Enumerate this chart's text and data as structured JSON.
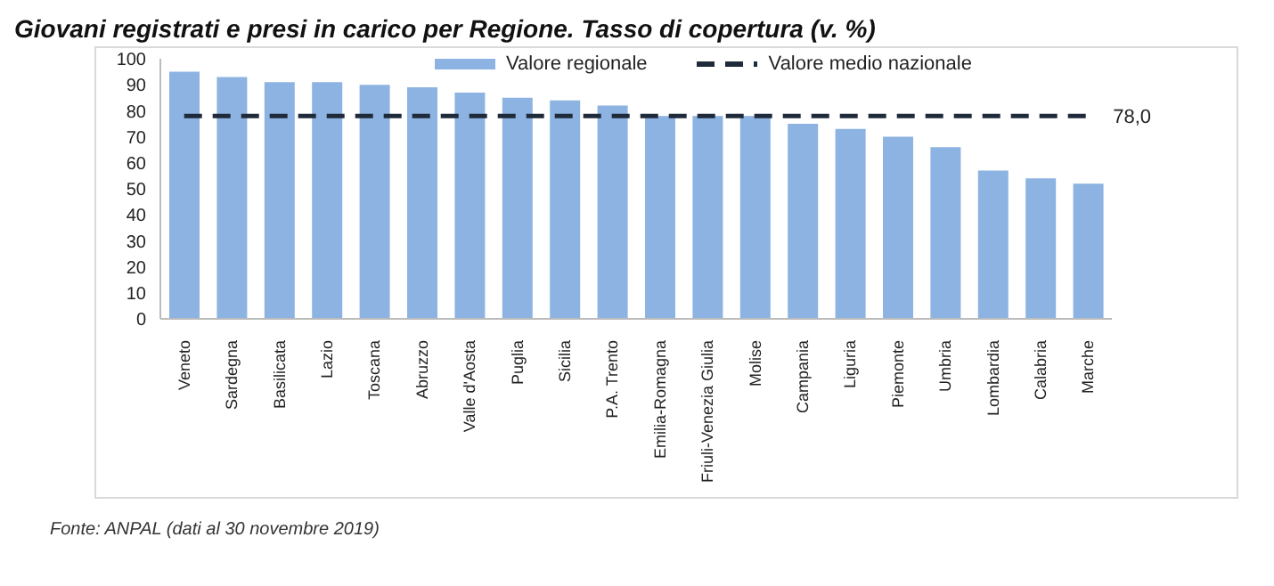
{
  "chart_data": {
    "type": "bar",
    "title": "Giovani registrati e presi in carico per Regione. Tasso di copertura (v. %)",
    "categories": [
      "Veneto",
      "Sardegna",
      "Basilicata",
      "Lazio",
      "Toscana",
      "Abruzzo",
      "Valle d'Aosta",
      "Puglia",
      "Sicilia",
      "P.A. Trento",
      "Emilia-Romagna",
      "Friuli-Venezia Giulia",
      "Molise",
      "Campania",
      "Liguria",
      "Piemonte",
      "Umbria",
      "Lombardia",
      "Calabria",
      "Marche"
    ],
    "series": [
      {
        "name": "Valore regionale",
        "color": "#8db3e2",
        "values": [
          95,
          93,
          91,
          91,
          90,
          89,
          87,
          85,
          84,
          82,
          78,
          78,
          78,
          75,
          73,
          70,
          66,
          57,
          54,
          52
        ]
      },
      {
        "name": "Valore medio nazionale",
        "type": "line",
        "color": "#1f2a3a",
        "values": [
          78,
          78,
          78,
          78,
          78,
          78,
          78,
          78,
          78,
          78,
          78,
          78,
          78,
          78,
          78,
          78,
          78,
          78,
          78,
          78
        ],
        "value_labels": [
          null,
          null,
          null,
          null,
          null,
          null,
          null,
          null,
          null,
          null,
          null,
          null,
          null,
          null,
          null,
          null,
          null,
          null,
          null,
          "78,0"
        ]
      }
    ],
    "ylim": [
      0,
      100
    ],
    "yticks": [
      0,
      10,
      20,
      30,
      40,
      50,
      60,
      70,
      80,
      90,
      100
    ],
    "annotations": [
      "Fonte: ANPAL (dati al 30 novembre 2019)"
    ],
    "legend": "top",
    "grid": false,
    "marker": "none",
    "line_style": "dashed"
  }
}
